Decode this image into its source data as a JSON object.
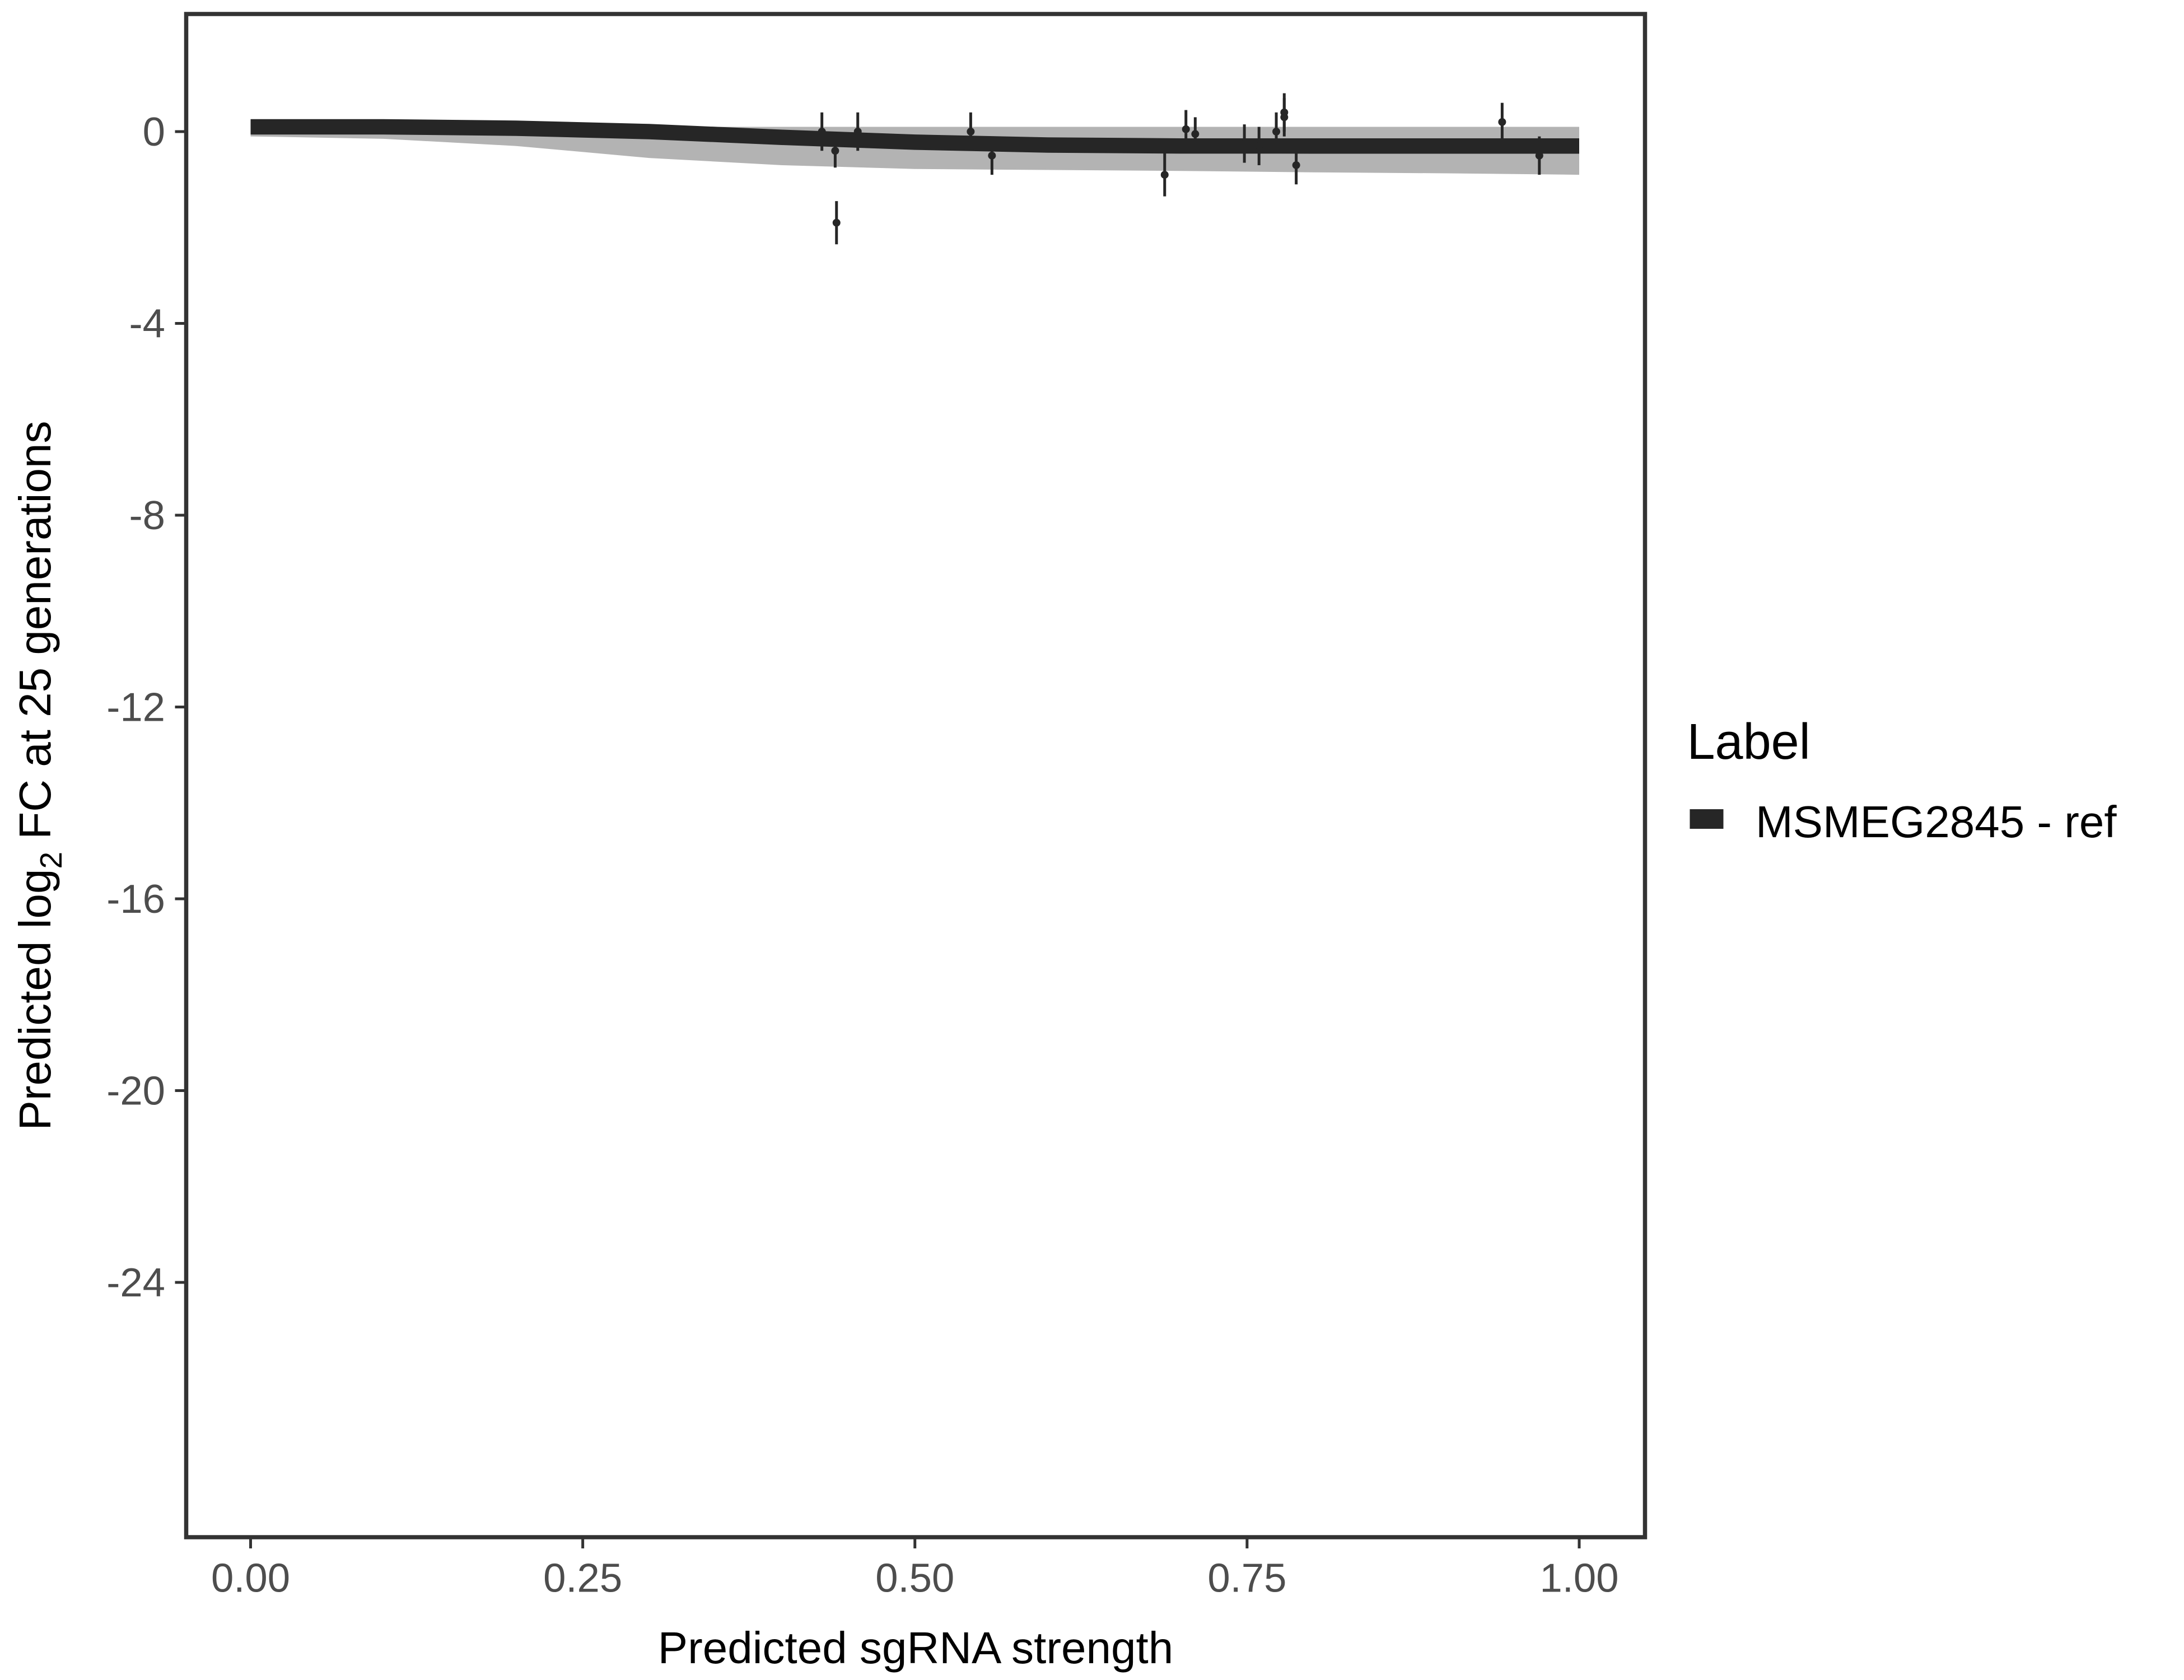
{
  "chart_data": {
    "type": "scatter",
    "title": "",
    "xlabel": "Predicted sgRNA strength",
    "ylabel_parts": {
      "pre": "Predicted  log",
      "sub": "2",
      "post": " FC at 25 generations"
    },
    "xlim": [
      -0.05,
      1.05
    ],
    "ylim": [
      -29.5,
      2.5
    ],
    "x_ticks": [
      "0.00",
      "0.25",
      "0.50",
      "0.75",
      "1.00"
    ],
    "x_tick_values": [
      0,
      0.25,
      0.5,
      0.75,
      1.0
    ],
    "y_ticks": [
      "0",
      "-4",
      "-8",
      "-12",
      "-16",
      "-20",
      "-24"
    ],
    "y_tick_values": [
      0,
      -4,
      -8,
      -12,
      -16,
      -20,
      -24
    ],
    "grid": false,
    "legend": {
      "title": "Label",
      "position": "right",
      "entries": [
        {
          "label": "MSMEG2845 - ref",
          "color": "#262626"
        }
      ]
    },
    "fit_line": {
      "name": "MSMEG2845 - ref",
      "color": "#262626",
      "x": [
        0,
        0.1,
        0.2,
        0.3,
        0.4,
        0.5,
        0.6,
        0.7,
        0.8,
        0.9,
        1.0
      ],
      "y": [
        0.1,
        0.1,
        0.07,
        0.0,
        -0.12,
        -0.22,
        -0.28,
        -0.3,
        -0.3,
        -0.3,
        -0.3
      ],
      "band_upper": [
        0.1,
        0.1,
        0.1,
        0.1,
        0.1,
        0.1,
        0.1,
        0.1,
        0.1,
        0.1,
        0.1
      ],
      "band_lower": [
        -0.1,
        -0.15,
        -0.3,
        -0.55,
        -0.7,
        -0.78,
        -0.8,
        -0.82,
        -0.85,
        -0.87,
        -0.9
      ]
    },
    "points": [
      {
        "x": 0.43,
        "y": 0.0,
        "err": 0.4
      },
      {
        "x": 0.44,
        "y": -0.4,
        "err": 0.35
      },
      {
        "x": 0.441,
        "y": -1.9,
        "err": 0.45
      },
      {
        "x": 0.457,
        "y": 0.0,
        "err": 0.4
      },
      {
        "x": 0.542,
        "y": 0.0,
        "err": 0.4
      },
      {
        "x": 0.558,
        "y": -0.5,
        "err": 0.4
      },
      {
        "x": 0.688,
        "y": -0.9,
        "err": 0.45
      },
      {
        "x": 0.704,
        "y": 0.05,
        "err": 0.4
      },
      {
        "x": 0.711,
        "y": -0.05,
        "err": 0.35
      },
      {
        "x": 0.748,
        "y": -0.25,
        "err": 0.4
      },
      {
        "x": 0.759,
        "y": -0.3,
        "err": 0.4
      },
      {
        "x": 0.772,
        "y": 0.0,
        "err": 0.4
      },
      {
        "x": 0.778,
        "y": 0.4,
        "err": 0.4
      },
      {
        "x": 0.778,
        "y": 0.3,
        "err": 0.4
      },
      {
        "x": 0.787,
        "y": -0.7,
        "err": 0.4
      },
      {
        "x": 0.942,
        "y": 0.2,
        "err": 0.4
      },
      {
        "x": 0.97,
        "y": -0.5,
        "err": 0.4
      }
    ]
  }
}
